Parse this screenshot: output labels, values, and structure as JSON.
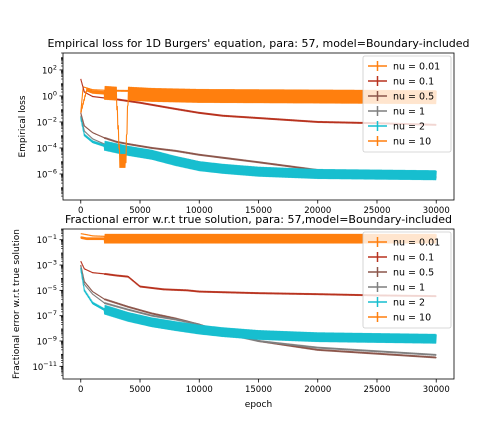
{
  "chart_data": [
    {
      "type": "line",
      "title": "Empirical loss for 1D Burgers' equation, para: 57, model=Boundary-included",
      "xlabel": "",
      "ylabel": "Empirical loss",
      "yscale": "log",
      "xlim": [
        -1500,
        31500
      ],
      "ylim": [
        1e-08,
        2000
      ],
      "xticks": [
        "0",
        "5000",
        "10000",
        "15000",
        "20000",
        "25000",
        "30000"
      ],
      "yticks": [
        "10^2",
        "10^0",
        "10^-2",
        "10^-4",
        "10^-6"
      ],
      "legend_position": "top-right",
      "series": [
        {
          "name": "nu = 0.01",
          "color": "#ff7f0e",
          "x": [
            0,
            200,
            1000,
            3000,
            10000,
            20000,
            30000
          ],
          "y": [
            0.05,
            5,
            3,
            2.5,
            2.2,
            2,
            1.8
          ]
        },
        {
          "name": "nu = 0.1",
          "color": "#b8321e",
          "x": [
            0,
            300,
            1000,
            2000,
            3000,
            5000,
            8000,
            10000,
            12000,
            15000,
            20000,
            25000,
            30000
          ],
          "y": [
            20,
            2,
            0.9,
            0.7,
            0.55,
            0.3,
            0.1,
            0.05,
            0.03,
            0.02,
            0.01,
            0.008,
            0.006
          ]
        },
        {
          "name": "nu = 0.5",
          "color": "#8c564b",
          "x": [
            0,
            300,
            1000,
            2000,
            3000,
            4000,
            6000,
            8000,
            10000,
            15000,
            20000,
            30000
          ],
          "y": [
            0.05,
            0.005,
            0.0015,
            0.0006,
            0.0003,
            0.0002,
            0.0001,
            6e-05,
            3e-05,
            8e-06,
            2e-06,
            6e-07
          ]
        },
        {
          "name": "nu = 1",
          "color": "#7f7f7f",
          "x": [
            0,
            300,
            1000,
            2000,
            4000,
            6000,
            8000,
            10000,
            12000,
            15000,
            20000,
            30000
          ],
          "y": [
            0.03,
            0.002,
            0.0005,
            0.0002,
            8e-05,
            4e-05,
            2e-05,
            8e-06,
            4e-06,
            2e-06,
            1e-06,
            5e-07
          ]
        },
        {
          "name": "nu = 2",
          "color": "#17becf",
          "x": [
            0,
            300,
            1000,
            2000,
            4000,
            6000,
            8000,
            10000,
            12000,
            15000,
            20000,
            30000
          ],
          "y": [
            0.02,
            0.001,
            0.0003,
            0.00015,
            6e-05,
            3e-05,
            1e-05,
            4e-06,
            2.5e-06,
            1.5e-06,
            1e-06,
            8e-07
          ]
        },
        {
          "name": "nu = 10",
          "color": "#ff7f0e",
          "x": [
            0,
            500,
            1000,
            3000,
            3300,
            3800,
            4000,
            6000,
            10000,
            20000,
            30000
          ],
          "y": [
            0.05,
            3,
            2,
            1.5,
            1e-05,
            1e-05,
            1.5,
            1.2,
            1,
            0.9,
            0.8
          ]
        }
      ]
    },
    {
      "type": "line",
      "title": "Fractional error w.r.t true solution, para: 57,model=Boundary-included",
      "xlabel": "epoch",
      "ylabel": "Fractional error w.r.t true solution",
      "yscale": "log",
      "xlim": [
        -1500,
        31500
      ],
      "ylim": [
        1e-12,
        0.7
      ],
      "xticks": [
        "0",
        "5000",
        "10000",
        "15000",
        "20000",
        "25000",
        "30000"
      ],
      "yticks": [
        "10^-1",
        "10^-3",
        "10^-5",
        "10^-7",
        "10^-9",
        "10^-11"
      ],
      "legend_position": "top-right",
      "series": [
        {
          "name": "nu = 0.01",
          "color": "#ff7f0e",
          "x": [
            0,
            500,
            1000,
            3000,
            10000,
            20000,
            30000
          ],
          "y": [
            0.3,
            0.25,
            0.2,
            0.17,
            0.15,
            0.14,
            0.13
          ]
        },
        {
          "name": "nu = 0.1",
          "color": "#b8321e",
          "x": [
            0,
            300,
            1000,
            2000,
            3000,
            4000,
            5000,
            7000,
            9000,
            10000,
            15000,
            20000,
            25000,
            30000
          ],
          "y": [
            0.002,
            0.0005,
            0.00025,
            0.0002,
            0.00015,
            0.00012,
            2e-05,
            1.2e-05,
            1e-05,
            8e-06,
            6e-06,
            5e-06,
            4e-06,
            3.5e-06
          ]
        },
        {
          "name": "nu = 0.5",
          "color": "#8c564b",
          "x": [
            0,
            300,
            1000,
            2000,
            4000,
            6000,
            8000,
            10000,
            12000,
            15000,
            20000,
            30000
          ],
          "y": [
            0.001,
            5e-05,
            8e-06,
            2e-06,
            5e-07,
            1.5e-07,
            6e-08,
            2e-08,
            5e-09,
            1e-09,
            2e-10,
            5e-11
          ]
        },
        {
          "name": "nu = 1",
          "color": "#7f7f7f",
          "x": [
            0,
            300,
            1000,
            2000,
            4000,
            6000,
            8000,
            10000,
            12000,
            15000,
            20000,
            30000
          ],
          "y": [
            0.0008,
            3e-05,
            5e-06,
            1e-06,
            3e-07,
            1e-07,
            5e-08,
            2e-08,
            4e-09,
            1e-09,
            3e-10,
            8e-11
          ]
        },
        {
          "name": "nu = 2",
          "color": "#17becf",
          "x": [
            0,
            300,
            1000,
            2000,
            4000,
            6000,
            8000,
            10000,
            12000,
            15000,
            20000,
            30000
          ],
          "y": [
            0.0005,
            1e-05,
            1e-06,
            3e-07,
            8e-08,
            3e-08,
            1.5e-08,
            8e-09,
            5e-09,
            3e-09,
            2e-09,
            1.5e-09
          ]
        },
        {
          "name": "nu = 10",
          "color": "#ff7f0e",
          "x": [
            0,
            500,
            2000,
            5000,
            10000,
            15000,
            20000,
            25000,
            30000
          ],
          "y": [
            0.15,
            0.12,
            0.12,
            0.12,
            0.12,
            0.12,
            0.12,
            0.12,
            0.12
          ]
        }
      ]
    }
  ]
}
